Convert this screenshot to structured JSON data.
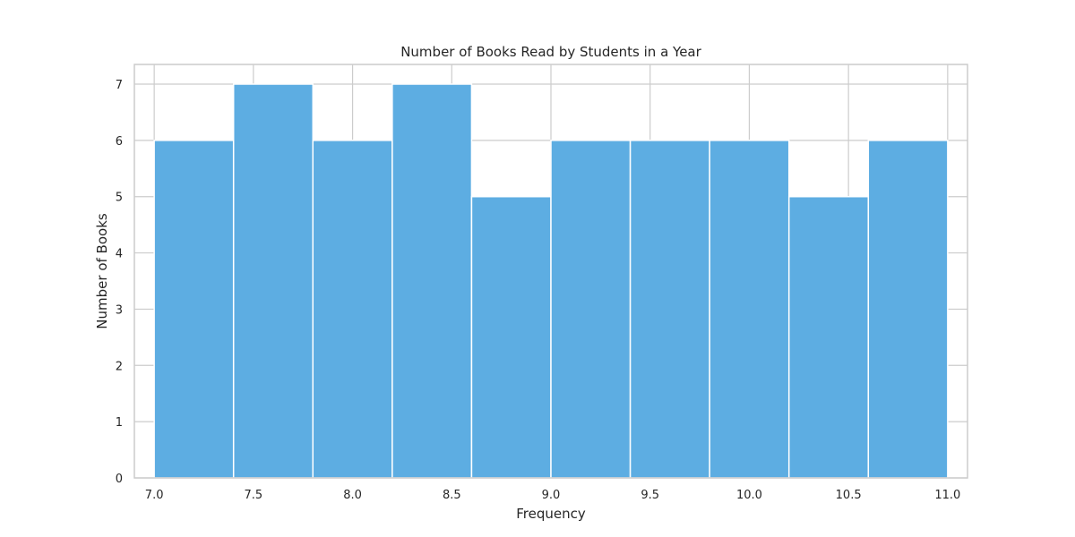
{
  "chart_data": {
    "type": "bar",
    "title": "Number of Books Read by Students in a Year",
    "xlabel": "Frequency",
    "ylabel": "Number of Books",
    "bins": [
      {
        "start": 7.0,
        "end": 7.4,
        "count": 6
      },
      {
        "start": 7.4,
        "end": 7.8,
        "count": 7
      },
      {
        "start": 7.8,
        "end": 8.2,
        "count": 6
      },
      {
        "start": 8.2,
        "end": 8.6,
        "count": 7
      },
      {
        "start": 8.6,
        "end": 9.0,
        "count": 5
      },
      {
        "start": 9.0,
        "end": 9.4,
        "count": 6
      },
      {
        "start": 9.4,
        "end": 9.8,
        "count": 6
      },
      {
        "start": 9.8,
        "end": 10.2,
        "count": 6
      },
      {
        "start": 10.2,
        "end": 10.6,
        "count": 5
      },
      {
        "start": 10.6,
        "end": 11.0,
        "count": 6
      }
    ],
    "xlim": [
      6.9,
      11.1
    ],
    "ylim": [
      0,
      7.35
    ],
    "xticks": [
      "7.0",
      "7.5",
      "8.0",
      "8.5",
      "9.0",
      "9.5",
      "10.0",
      "10.5",
      "11.0"
    ],
    "yticks": [
      "0",
      "1",
      "2",
      "3",
      "4",
      "5",
      "6",
      "7"
    ],
    "grid": true,
    "bar_color": "#5dade2"
  }
}
